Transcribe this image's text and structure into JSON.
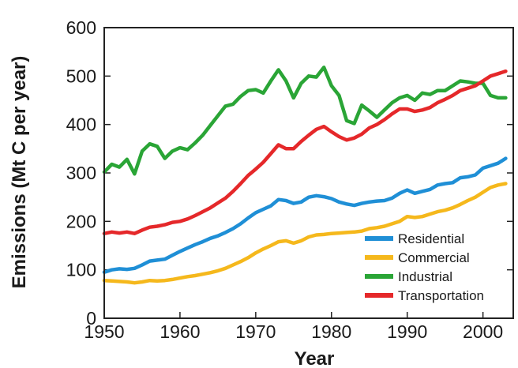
{
  "chart_data": {
    "type": "line",
    "title": "",
    "xlabel": "Year",
    "ylabel": "Emissions (Mt C per year)",
    "xlim": [
      1950,
      2004
    ],
    "ylim": [
      0,
      600
    ],
    "x_ticks": [
      "1950",
      "1960",
      "1970",
      "1980",
      "1990",
      "2000"
    ],
    "y_ticks": [
      "0",
      "100",
      "200",
      "300",
      "400",
      "500",
      "600"
    ],
    "grid": false,
    "legend_position": "bottom-right",
    "series": [
      {
        "name": "Residential",
        "color": "#1f8fd6",
        "x": [
          1950,
          1951,
          1952,
          1953,
          1954,
          1955,
          1956,
          1957,
          1958,
          1959,
          1960,
          1961,
          1962,
          1963,
          1964,
          1965,
          1966,
          1967,
          1968,
          1969,
          1970,
          1971,
          1972,
          1973,
          1974,
          1975,
          1976,
          1977,
          1978,
          1979,
          1980,
          1981,
          1982,
          1983,
          1984,
          1985,
          1986,
          1987,
          1988,
          1989,
          1990,
          1991,
          1992,
          1993,
          1994,
          1995,
          1996,
          1997,
          1998,
          1999,
          2000,
          2001,
          2002,
          2003
        ],
        "values": [
          95,
          100,
          102,
          101,
          103,
          110,
          118,
          120,
          122,
          130,
          138,
          145,
          152,
          158,
          165,
          170,
          177,
          185,
          195,
          207,
          218,
          225,
          232,
          245,
          243,
          237,
          240,
          250,
          253,
          251,
          247,
          240,
          236,
          233,
          237,
          240,
          242,
          243,
          248,
          258,
          265,
          258,
          262,
          266,
          275,
          278,
          280,
          290,
          292,
          296,
          310,
          315,
          320,
          330
        ]
      },
      {
        "name": "Commercial",
        "color": "#f5b81c",
        "x": [
          1950,
          1951,
          1952,
          1953,
          1954,
          1955,
          1956,
          1957,
          1958,
          1959,
          1960,
          1961,
          1962,
          1963,
          1964,
          1965,
          1966,
          1967,
          1968,
          1969,
          1970,
          1971,
          1972,
          1973,
          1974,
          1975,
          1976,
          1977,
          1978,
          1979,
          1980,
          1981,
          1982,
          1983,
          1984,
          1985,
          1986,
          1987,
          1988,
          1989,
          1990,
          1991,
          1992,
          1993,
          1994,
          1995,
          1996,
          1997,
          1998,
          1999,
          2000,
          2001,
          2002,
          2003
        ],
        "values": [
          78,
          77,
          76,
          75,
          73,
          75,
          78,
          77,
          78,
          80,
          83,
          86,
          88,
          91,
          94,
          98,
          103,
          110,
          117,
          125,
          135,
          143,
          150,
          158,
          160,
          155,
          160,
          168,
          172,
          173,
          175,
          176,
          177,
          178,
          180,
          185,
          187,
          190,
          195,
          200,
          210,
          208,
          210,
          215,
          220,
          223,
          228,
          235,
          243,
          250,
          260,
          270,
          275,
          278
        ]
      },
      {
        "name": "Industrial",
        "color": "#2aa536",
        "x": [
          1950,
          1951,
          1952,
          1953,
          1954,
          1955,
          1956,
          1957,
          1958,
          1959,
          1960,
          1961,
          1962,
          1963,
          1964,
          1965,
          1966,
          1967,
          1968,
          1969,
          1970,
          1971,
          1972,
          1973,
          1974,
          1975,
          1976,
          1977,
          1978,
          1979,
          1980,
          1981,
          1982,
          1983,
          1984,
          1985,
          1986,
          1987,
          1988,
          1989,
          1990,
          1991,
          1992,
          1993,
          1994,
          1995,
          1996,
          1997,
          1998,
          1999,
          2000,
          2001,
          2002,
          2003
        ],
        "values": [
          302,
          318,
          312,
          328,
          298,
          345,
          360,
          355,
          330,
          345,
          352,
          348,
          362,
          378,
          398,
          418,
          438,
          442,
          458,
          470,
          472,
          465,
          490,
          513,
          490,
          455,
          485,
          500,
          498,
          518,
          480,
          460,
          408,
          402,
          440,
          428,
          415,
          430,
          445,
          455,
          460,
          450,
          465,
          462,
          470,
          470,
          480,
          490,
          488,
          485,
          485,
          460,
          455,
          455
        ]
      },
      {
        "name": "Transportation",
        "color": "#e5282a",
        "x": [
          1950,
          1951,
          1952,
          1953,
          1954,
          1955,
          1956,
          1957,
          1958,
          1959,
          1960,
          1961,
          1962,
          1963,
          1964,
          1965,
          1966,
          1967,
          1968,
          1969,
          1970,
          1971,
          1972,
          1973,
          1974,
          1975,
          1976,
          1977,
          1978,
          1979,
          1980,
          1981,
          1982,
          1983,
          1984,
          1985,
          1986,
          1987,
          1988,
          1989,
          1990,
          1991,
          1992,
          1993,
          1994,
          1995,
          1996,
          1997,
          1998,
          1999,
          2000,
          2001,
          2002,
          2003
        ],
        "values": [
          175,
          178,
          176,
          178,
          175,
          182,
          188,
          190,
          193,
          198,
          200,
          205,
          212,
          220,
          228,
          238,
          248,
          262,
          278,
          295,
          308,
          322,
          340,
          358,
          350,
          350,
          365,
          378,
          390,
          396,
          385,
          375,
          368,
          372,
          380,
          393,
          400,
          410,
          422,
          432,
          432,
          427,
          430,
          435,
          445,
          452,
          460,
          470,
          475,
          480,
          490,
          500,
          505,
          510
        ]
      }
    ]
  }
}
